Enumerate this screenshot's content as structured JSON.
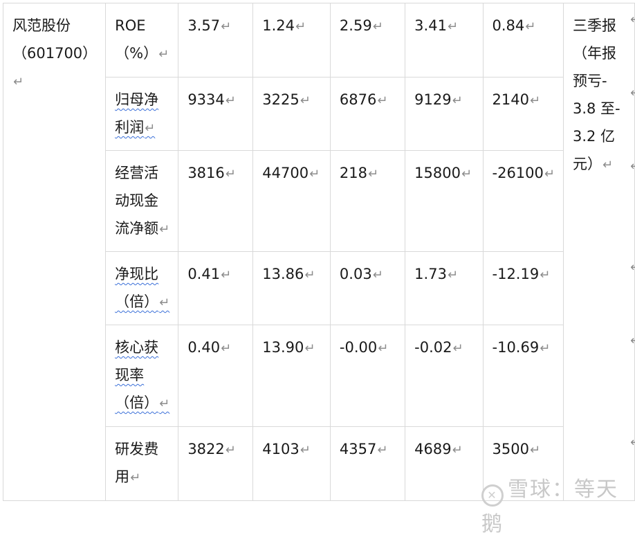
{
  "company": "风范股份\n（601700）",
  "note": "三季报\n（年报\n预亏-\n3.8 至-\n3.2 亿\n元）",
  "rows": [
    {
      "label": "ROE\n（%）",
      "spell": false,
      "values": [
        "3.57",
        "1.24",
        "2.59",
        "3.41",
        "0.84"
      ]
    },
    {
      "label": "归母净\n利润",
      "spell": true,
      "values": [
        "9334",
        "3225",
        "6876",
        "9129",
        "2140"
      ]
    },
    {
      "label": "经营活\n动现金\n流净额",
      "spell": false,
      "values": [
        "3816",
        "44700",
        "218",
        "15800",
        "-26100"
      ]
    },
    {
      "label": "净现比\n（倍）",
      "spell": true,
      "values": [
        "0.41",
        "13.86",
        "0.03",
        "1.73",
        "-12.19"
      ]
    },
    {
      "label": "核心获\n现率\n（倍）",
      "spell": true,
      "values": [
        "0.40",
        "13.90",
        "-0.00",
        "-0.02",
        "-10.69"
      ]
    },
    {
      "label": "研发费\n用",
      "spell": false,
      "values": [
        "3822",
        "4103",
        "4357",
        "4689",
        "3500"
      ]
    }
  ],
  "watermark": "雪球：等天鹅",
  "colors": {
    "border": "#d9d9d9",
    "spellcheck": "#3a6fd8",
    "mark": "#8c8c8c"
  }
}
